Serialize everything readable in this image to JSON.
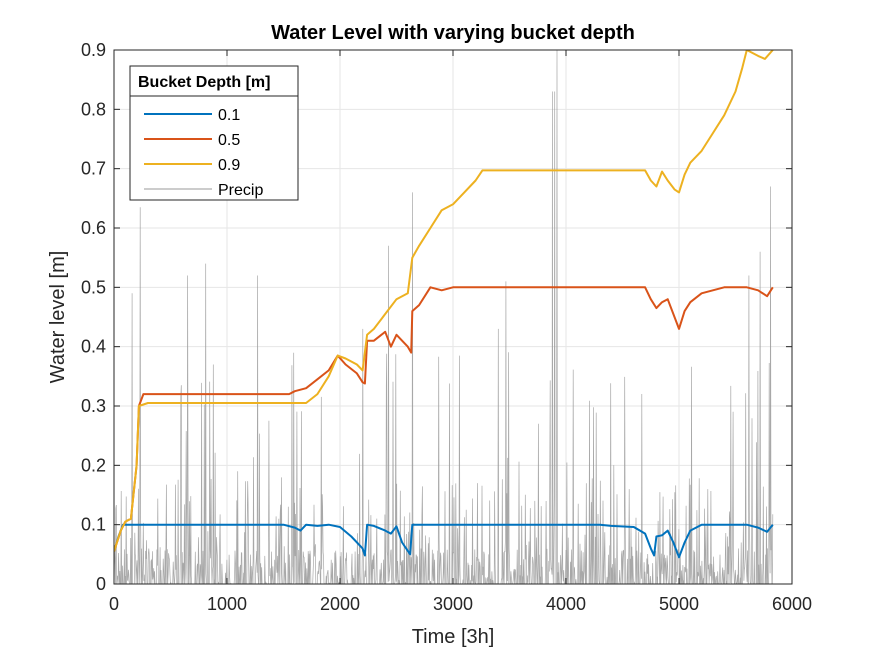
{
  "chart_data": {
    "type": "line",
    "title": "Water Level with varying bucket depth",
    "xlabel": "Time [3h]",
    "ylabel": "Water level [m]",
    "xlim": [
      0,
      6000
    ],
    "ylim": [
      0,
      0.9
    ],
    "xticks": [
      0,
      1000,
      2000,
      3000,
      4000,
      5000,
      6000
    ],
    "yticks": [
      0,
      0.1,
      0.2,
      0.3,
      0.4,
      0.5,
      0.6,
      0.7,
      0.8,
      0.9
    ],
    "xtick_labels": [
      "0",
      "1000",
      "2000",
      "3000",
      "4000",
      "5000",
      "6000"
    ],
    "ytick_labels": [
      "0",
      "0.1",
      "0.2",
      "0.3",
      "0.4",
      "0.5",
      "0.6",
      "0.7",
      "0.8",
      "0.9"
    ],
    "grid": true,
    "legend": {
      "title": "Bucket Depth [m]",
      "placement": "top-left"
    },
    "series": [
      {
        "name": "0.1",
        "color": "#0072BD",
        "points": [
          [
            0,
            0.055
          ],
          [
            40,
            0.08
          ],
          [
            80,
            0.1
          ],
          [
            300,
            0.1
          ],
          [
            1000,
            0.1
          ],
          [
            1500,
            0.1
          ],
          [
            1600,
            0.095
          ],
          [
            1650,
            0.09
          ],
          [
            1700,
            0.1
          ],
          [
            1800,
            0.098
          ],
          [
            1900,
            0.1
          ],
          [
            2000,
            0.096
          ],
          [
            2100,
            0.08
          ],
          [
            2200,
            0.06
          ],
          [
            2220,
            0.048
          ],
          [
            2240,
            0.1
          ],
          [
            2300,
            0.098
          ],
          [
            2400,
            0.09
          ],
          [
            2450,
            0.085
          ],
          [
            2500,
            0.097
          ],
          [
            2550,
            0.07
          ],
          [
            2620,
            0.05
          ],
          [
            2640,
            0.1
          ],
          [
            3000,
            0.1
          ],
          [
            3500,
            0.1
          ],
          [
            4000,
            0.1
          ],
          [
            4300,
            0.1
          ],
          [
            4400,
            0.098
          ],
          [
            4600,
            0.096
          ],
          [
            4700,
            0.085
          ],
          [
            4750,
            0.06
          ],
          [
            4780,
            0.048
          ],
          [
            4800,
            0.08
          ],
          [
            4850,
            0.082
          ],
          [
            4900,
            0.09
          ],
          [
            4950,
            0.07
          ],
          [
            5000,
            0.045
          ],
          [
            5050,
            0.07
          ],
          [
            5100,
            0.09
          ],
          [
            5200,
            0.1
          ],
          [
            5300,
            0.1
          ],
          [
            5400,
            0.1
          ],
          [
            5500,
            0.1
          ],
          [
            5600,
            0.1
          ],
          [
            5700,
            0.095
          ],
          [
            5780,
            0.088
          ],
          [
            5830,
            0.1
          ]
        ]
      },
      {
        "name": "0.5",
        "color": "#D95319",
        "points": [
          [
            0,
            0.055
          ],
          [
            60,
            0.09
          ],
          [
            100,
            0.105
          ],
          [
            150,
            0.11
          ],
          [
            200,
            0.2
          ],
          [
            220,
            0.3
          ],
          [
            260,
            0.32
          ],
          [
            500,
            0.32
          ],
          [
            1000,
            0.32
          ],
          [
            1550,
            0.32
          ],
          [
            1600,
            0.325
          ],
          [
            1700,
            0.33
          ],
          [
            1800,
            0.345
          ],
          [
            1900,
            0.36
          ],
          [
            1980,
            0.385
          ],
          [
            2050,
            0.37
          ],
          [
            2150,
            0.355
          ],
          [
            2200,
            0.34
          ],
          [
            2220,
            0.338
          ],
          [
            2240,
            0.41
          ],
          [
            2300,
            0.41
          ],
          [
            2400,
            0.425
          ],
          [
            2450,
            0.4
          ],
          [
            2500,
            0.42
          ],
          [
            2600,
            0.4
          ],
          [
            2630,
            0.39
          ],
          [
            2640,
            0.46
          ],
          [
            2700,
            0.47
          ],
          [
            2800,
            0.5
          ],
          [
            2900,
            0.495
          ],
          [
            3000,
            0.5
          ],
          [
            3500,
            0.5
          ],
          [
            4000,
            0.5
          ],
          [
            4500,
            0.5
          ],
          [
            4700,
            0.5
          ],
          [
            4750,
            0.48
          ],
          [
            4800,
            0.465
          ],
          [
            4850,
            0.475
          ],
          [
            4900,
            0.48
          ],
          [
            4960,
            0.45
          ],
          [
            5000,
            0.43
          ],
          [
            5050,
            0.46
          ],
          [
            5100,
            0.475
          ],
          [
            5200,
            0.49
          ],
          [
            5300,
            0.495
          ],
          [
            5400,
            0.5
          ],
          [
            5500,
            0.5
          ],
          [
            5600,
            0.5
          ],
          [
            5700,
            0.495
          ],
          [
            5780,
            0.485
          ],
          [
            5830,
            0.5
          ]
        ]
      },
      {
        "name": "0.9",
        "color": "#EDB120",
        "points": [
          [
            0,
            0.055
          ],
          [
            60,
            0.09
          ],
          [
            100,
            0.105
          ],
          [
            150,
            0.11
          ],
          [
            200,
            0.2
          ],
          [
            220,
            0.3
          ],
          [
            300,
            0.305
          ],
          [
            1000,
            0.305
          ],
          [
            1700,
            0.305
          ],
          [
            1800,
            0.32
          ],
          [
            1900,
            0.35
          ],
          [
            1980,
            0.385
          ],
          [
            2050,
            0.38
          ],
          [
            2150,
            0.37
          ],
          [
            2200,
            0.36
          ],
          [
            2240,
            0.42
          ],
          [
            2300,
            0.43
          ],
          [
            2400,
            0.455
          ],
          [
            2500,
            0.48
          ],
          [
            2600,
            0.49
          ],
          [
            2640,
            0.55
          ],
          [
            2700,
            0.57
          ],
          [
            2800,
            0.6
          ],
          [
            2900,
            0.63
          ],
          [
            3000,
            0.64
          ],
          [
            3100,
            0.66
          ],
          [
            3200,
            0.68
          ],
          [
            3260,
            0.697
          ],
          [
            3500,
            0.697
          ],
          [
            4000,
            0.697
          ],
          [
            4500,
            0.697
          ],
          [
            4700,
            0.697
          ],
          [
            4750,
            0.68
          ],
          [
            4800,
            0.67
          ],
          [
            4850,
            0.695
          ],
          [
            4900,
            0.68
          ],
          [
            4960,
            0.665
          ],
          [
            5000,
            0.66
          ],
          [
            5050,
            0.69
          ],
          [
            5100,
            0.71
          ],
          [
            5200,
            0.73
          ],
          [
            5300,
            0.76
          ],
          [
            5400,
            0.79
          ],
          [
            5500,
            0.83
          ],
          [
            5560,
            0.87
          ],
          [
            5600,
            0.9
          ],
          [
            5700,
            0.89
          ],
          [
            5760,
            0.885
          ],
          [
            5830,
            0.9
          ]
        ]
      },
      {
        "name": "Precip",
        "color": "#999999",
        "seed": 12345,
        "n": 1460,
        "peaks": [
          [
            230,
            0.635
          ],
          [
            160,
            0.49
          ],
          [
            810,
            0.54
          ],
          [
            880,
            0.37
          ],
          [
            650,
            0.52
          ],
          [
            1270,
            0.52
          ],
          [
            2200,
            0.43
          ],
          [
            2430,
            0.57
          ],
          [
            2640,
            0.66
          ],
          [
            3400,
            0.43
          ],
          [
            3470,
            0.51
          ],
          [
            3920,
            0.9
          ],
          [
            3880,
            0.83
          ],
          [
            3900,
            0.83
          ],
          [
            5720,
            0.56
          ],
          [
            5810,
            0.67
          ],
          [
            5620,
            0.52
          ],
          [
            4560,
            0.16
          ]
        ]
      }
    ]
  }
}
